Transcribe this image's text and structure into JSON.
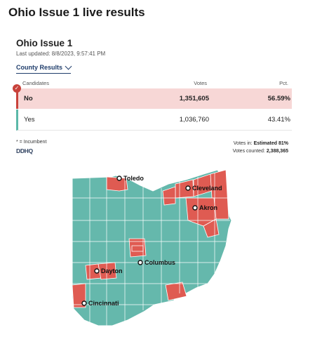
{
  "page": {
    "title": "Ohio Issue 1 live results"
  },
  "widget": {
    "title": "Ohio Issue 1",
    "last_updated": "Last updated: 8/8/2023, 9:57:41 PM",
    "dropdown": {
      "selected": "County Results"
    },
    "table": {
      "headers": {
        "candidates": "Candidates",
        "votes": "Votes",
        "pct": "Pct."
      },
      "rows": [
        {
          "name": "No",
          "votes": "1,351,605",
          "pct": "56.59%",
          "winner": true,
          "color": "#c8423b"
        },
        {
          "name": "Yes",
          "votes": "1,036,760",
          "pct": "43.41%",
          "winner": false,
          "color": "#5bb8a8"
        }
      ]
    },
    "footer": {
      "incumbent_note": "* = Incumbent",
      "source": "DDHQ",
      "votes_in_label": "Votes in:",
      "votes_in_value": "Estimated 81%",
      "votes_counted_label": "Votes counted:",
      "votes_counted_value": "2,388,365"
    }
  },
  "map": {
    "colors": {
      "no": "#df5b52",
      "yes": "#65b8ac",
      "border": "#ffffff"
    },
    "cities": [
      "Toledo",
      "Cleveland",
      "Akron",
      "Columbus",
      "Dayton",
      "Cincinnati"
    ]
  }
}
